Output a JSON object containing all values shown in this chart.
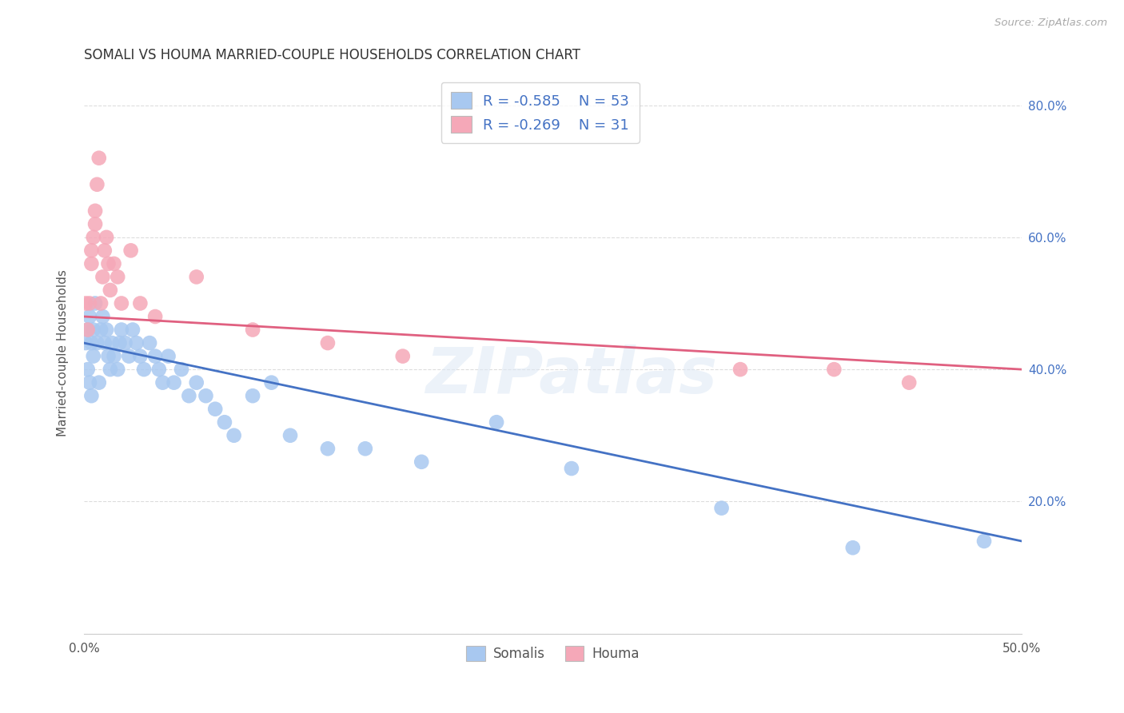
{
  "title": "SOMALI VS HOUMA MARRIED-COUPLE HOUSEHOLDS CORRELATION CHART",
  "source": "Source: ZipAtlas.com",
  "ylabel": "Married-couple Households",
  "xlim": [
    0.0,
    0.5
  ],
  "ylim": [
    0.0,
    0.85
  ],
  "ytick_positions": [
    0.0,
    0.2,
    0.4,
    0.6,
    0.8
  ],
  "ytick_labels": [
    "",
    "20.0%",
    "40.0%",
    "60.0%",
    "80.0%"
  ],
  "xtick_positions": [
    0.0,
    0.1,
    0.2,
    0.3,
    0.4,
    0.5
  ],
  "xtick_labels": [
    "0.0%",
    "",
    "",
    "",
    "",
    "50.0%"
  ],
  "legend_r1": "R = -0.585",
  "legend_n1": "N = 53",
  "legend_r2": "R = -0.269",
  "legend_n2": "N = 31",
  "somali_color": "#a8c8f0",
  "houma_color": "#f5a8b8",
  "somali_line_color": "#4472c4",
  "houma_line_color": "#e06080",
  "watermark": "ZIPatlas",
  "background_color": "#ffffff",
  "grid_color": "#dddddd",
  "somali_x": [
    0.001,
    0.002,
    0.002,
    0.003,
    0.003,
    0.004,
    0.004,
    0.005,
    0.005,
    0.006,
    0.007,
    0.008,
    0.009,
    0.01,
    0.011,
    0.012,
    0.013,
    0.014,
    0.015,
    0.016,
    0.018,
    0.019,
    0.02,
    0.022,
    0.024,
    0.026,
    0.028,
    0.03,
    0.032,
    0.035,
    0.038,
    0.04,
    0.042,
    0.045,
    0.048,
    0.052,
    0.056,
    0.06,
    0.065,
    0.07,
    0.075,
    0.08,
    0.09,
    0.1,
    0.11,
    0.13,
    0.15,
    0.18,
    0.22,
    0.26,
    0.34,
    0.41,
    0.48
  ],
  "somali_y": [
    0.44,
    0.46,
    0.4,
    0.48,
    0.38,
    0.44,
    0.36,
    0.46,
    0.42,
    0.5,
    0.44,
    0.38,
    0.46,
    0.48,
    0.44,
    0.46,
    0.42,
    0.4,
    0.44,
    0.42,
    0.4,
    0.44,
    0.46,
    0.44,
    0.42,
    0.46,
    0.44,
    0.42,
    0.4,
    0.44,
    0.42,
    0.4,
    0.38,
    0.42,
    0.38,
    0.4,
    0.36,
    0.38,
    0.36,
    0.34,
    0.32,
    0.3,
    0.36,
    0.38,
    0.3,
    0.28,
    0.28,
    0.26,
    0.32,
    0.25,
    0.19,
    0.13,
    0.14
  ],
  "houma_x": [
    0.001,
    0.002,
    0.003,
    0.004,
    0.004,
    0.005,
    0.006,
    0.006,
    0.007,
    0.008,
    0.009,
    0.01,
    0.011,
    0.012,
    0.013,
    0.014,
    0.016,
    0.018,
    0.02,
    0.025,
    0.03,
    0.038,
    0.06,
    0.09,
    0.13,
    0.17,
    0.35,
    0.4,
    0.44
  ],
  "houma_y": [
    0.5,
    0.46,
    0.5,
    0.56,
    0.58,
    0.6,
    0.62,
    0.64,
    0.68,
    0.72,
    0.5,
    0.54,
    0.58,
    0.6,
    0.56,
    0.52,
    0.56,
    0.54,
    0.5,
    0.58,
    0.5,
    0.48,
    0.54,
    0.46,
    0.44,
    0.42,
    0.4,
    0.4,
    0.38
  ],
  "somali_line_x": [
    0.0,
    0.5
  ],
  "somali_line_y": [
    0.44,
    0.14
  ],
  "houma_line_x": [
    0.0,
    0.5
  ],
  "houma_line_y": [
    0.48,
    0.4
  ]
}
